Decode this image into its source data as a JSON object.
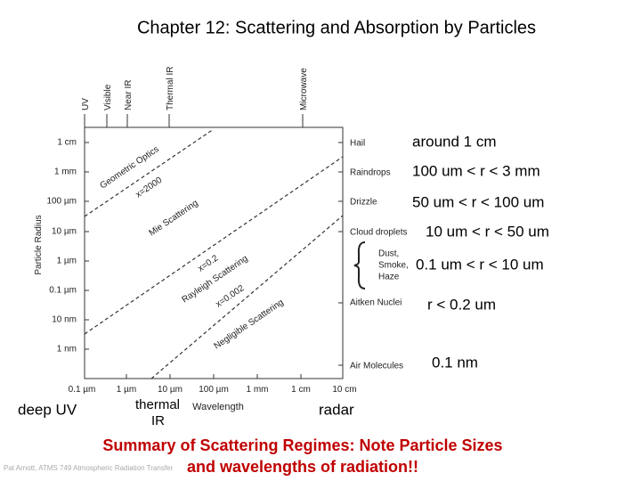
{
  "header": {
    "title": "Chapter 12: Scattering and Absorption by Particles"
  },
  "figure": {
    "y_axis_label": "Particle Radius",
    "x_axis_label": "Wavelength",
    "y_ticks": [
      "1 cm",
      "1 mm",
      "100 µm",
      "10 µm",
      "1 µm",
      "0.1 µm",
      "10 nm",
      "1 nm"
    ],
    "x_ticks": [
      "0.1 µm",
      "1 µm",
      "10 µm",
      "100 µm",
      "1 mm",
      "1 cm",
      "10 cm"
    ],
    "bands": [
      "UV",
      "Visible",
      "Near IR",
      "Thermal IR",
      "Microwave"
    ],
    "particles": [
      "Hail",
      "Raindrops",
      "Drizzle",
      "Cloud droplets",
      "Dust,",
      "Smoke,",
      "Haze",
      "Aitken Nuclei",
      "Air Molecules"
    ],
    "regimes": [
      "Geometric Optics",
      "x=2000",
      "Mie Scattering",
      "x=0.2",
      "Rayleigh Scattering",
      "x=0.002",
      "Negligible Scattering"
    ]
  },
  "annotations": {
    "sizes": [
      "around 1 cm",
      "100 um < r < 3 mm",
      "50 um < r < 100 um",
      "10 um < r < 50 um",
      "0.1 um < r < 10 um",
      "r < 0.2 um",
      "0.1 nm"
    ],
    "bottom": [
      "deep UV",
      "thermal",
      "IR",
      "radar"
    ]
  },
  "footer": {
    "summary_line1": "Summary of Scattering Regimes: Note Particle Sizes",
    "summary_line2": "and wavelengths of radiation!!",
    "credit": "Pat Arnott, ATMS 749 Atmospheric Radiation Transfer"
  }
}
